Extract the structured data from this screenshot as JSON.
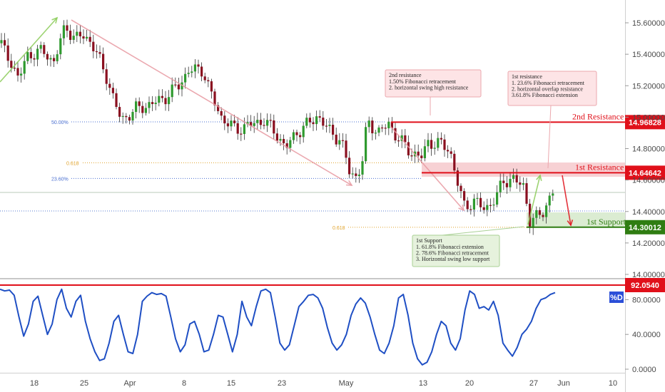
{
  "chart_data": [
    {
      "type": "candlestick",
      "y_ticks": [
        "15.60000",
        "15.40000",
        "15.20000",
        "15.00000",
        "14.80000",
        "14.60000",
        "14.40000",
        "14.20000",
        "14.00000"
      ],
      "ylim": [
        13.98,
        15.68
      ],
      "x_ticks": [
        "18",
        "25",
        "Apr",
        "8",
        "15",
        "23",
        "May",
        "13",
        "20",
        "27",
        "Jun",
        "10"
      ],
      "horizontal_levels": [
        {
          "name": "2nd Resistance",
          "value": 14.96828,
          "label": "2nd Resistance",
          "badge": "14.96828",
          "color": "#e0101a"
        },
        {
          "name": "1st Resistance",
          "value": 14.64642,
          "label": "1st Resistance",
          "badge": "14.64642",
          "color": "#e0101a"
        },
        {
          "name": "1st Support",
          "value": 14.30012,
          "label": "1st Support",
          "badge": "14.30012",
          "color": "#2f7d12"
        }
      ],
      "fib_lines": [
        {
          "label": "50.00%",
          "value": 14.97,
          "color": "#4a6fd0"
        },
        {
          "label": "0.618",
          "value": 14.71,
          "color": "#e0a22a"
        },
        {
          "label": "23.60%",
          "value": 14.61,
          "color": "#4a6fd0"
        },
        {
          "label": "0.618",
          "value": 14.3,
          "color": "#e0a22a"
        }
      ],
      "annotations": [
        {
          "title": "2nd resistance",
          "lines": [
            "1.50% Fibonacci retracement",
            "2. horizontal swing high resistance"
          ]
        },
        {
          "title": "1st resistance",
          "lines": [
            "1. 23.6% Fibonacci retracement",
            "2. horizontal overlap resistance",
            "3.61.8% Fibonacci extension"
          ]
        },
        {
          "title": "1st Support",
          "lines": [
            "1. 61.8% Fibonacci extension",
            "2. 78.6% Fibonacci retracement",
            "3. Horizontal swing low support"
          ]
        }
      ]
    },
    {
      "type": "line",
      "series": [
        {
          "name": "%D"
        }
      ],
      "y_ticks": [
        "80.0000",
        "40.0000",
        "0.0000"
      ],
      "ylim": [
        0,
        100
      ],
      "level": {
        "value": 92.054,
        "badge": "92.0540",
        "color": "#e0101a"
      },
      "legend_label": "%D",
      "x": [
        0,
        1,
        2,
        3,
        4,
        5,
        6,
        7,
        8,
        9,
        10,
        11,
        12,
        13,
        14,
        15,
        16,
        17,
        18,
        19,
        20,
        21,
        22,
        23,
        24,
        25,
        26,
        27,
        28,
        29,
        30,
        31,
        32,
        33,
        34,
        35,
        36,
        37,
        38,
        39,
        40,
        41,
        42,
        43,
        44,
        45,
        46,
        47,
        48,
        49,
        50,
        51,
        52,
        53,
        54,
        55,
        56,
        57,
        58,
        59,
        60,
        61,
        62,
        63,
        64,
        65,
        66,
        67,
        68,
        69,
        70,
        71,
        72,
        73,
        74,
        75,
        76,
        77,
        78,
        79,
        80,
        81,
        82,
        83,
        84,
        85,
        86,
        87,
        88,
        89,
        90,
        91,
        92,
        93,
        94,
        95,
        96,
        97,
        98,
        99,
        100,
        101,
        102,
        103,
        104,
        105,
        106,
        107,
        108,
        109,
        110,
        111,
        112,
        113,
        114,
        115,
        116,
        117
      ],
      "values": [
        92,
        90,
        91,
        85,
        60,
        38,
        52,
        78,
        84,
        62,
        40,
        52,
        80,
        92,
        70,
        60,
        78,
        85,
        55,
        35,
        20,
        10,
        12,
        30,
        55,
        62,
        40,
        20,
        18,
        40,
        78,
        84,
        88,
        86,
        87,
        84,
        60,
        35,
        20,
        28,
        52,
        55,
        40,
        20,
        22,
        40,
        62,
        60,
        40,
        20,
        40,
        78,
        60,
        50,
        72,
        90,
        92,
        88,
        60,
        30,
        22,
        28,
        50,
        72,
        78,
        85,
        86,
        82,
        70,
        48,
        30,
        22,
        28,
        40,
        62,
        75,
        82,
        76,
        60,
        40,
        22,
        18,
        30,
        50,
        82,
        86,
        62,
        30,
        12,
        5,
        8,
        20,
        40,
        55,
        50,
        30,
        22,
        35,
        68,
        90,
        86,
        70,
        72,
        68,
        78,
        62,
        30,
        22,
        15,
        25,
        40,
        46,
        55,
        70,
        80,
        82,
        86,
        88
      ]
    }
  ]
}
